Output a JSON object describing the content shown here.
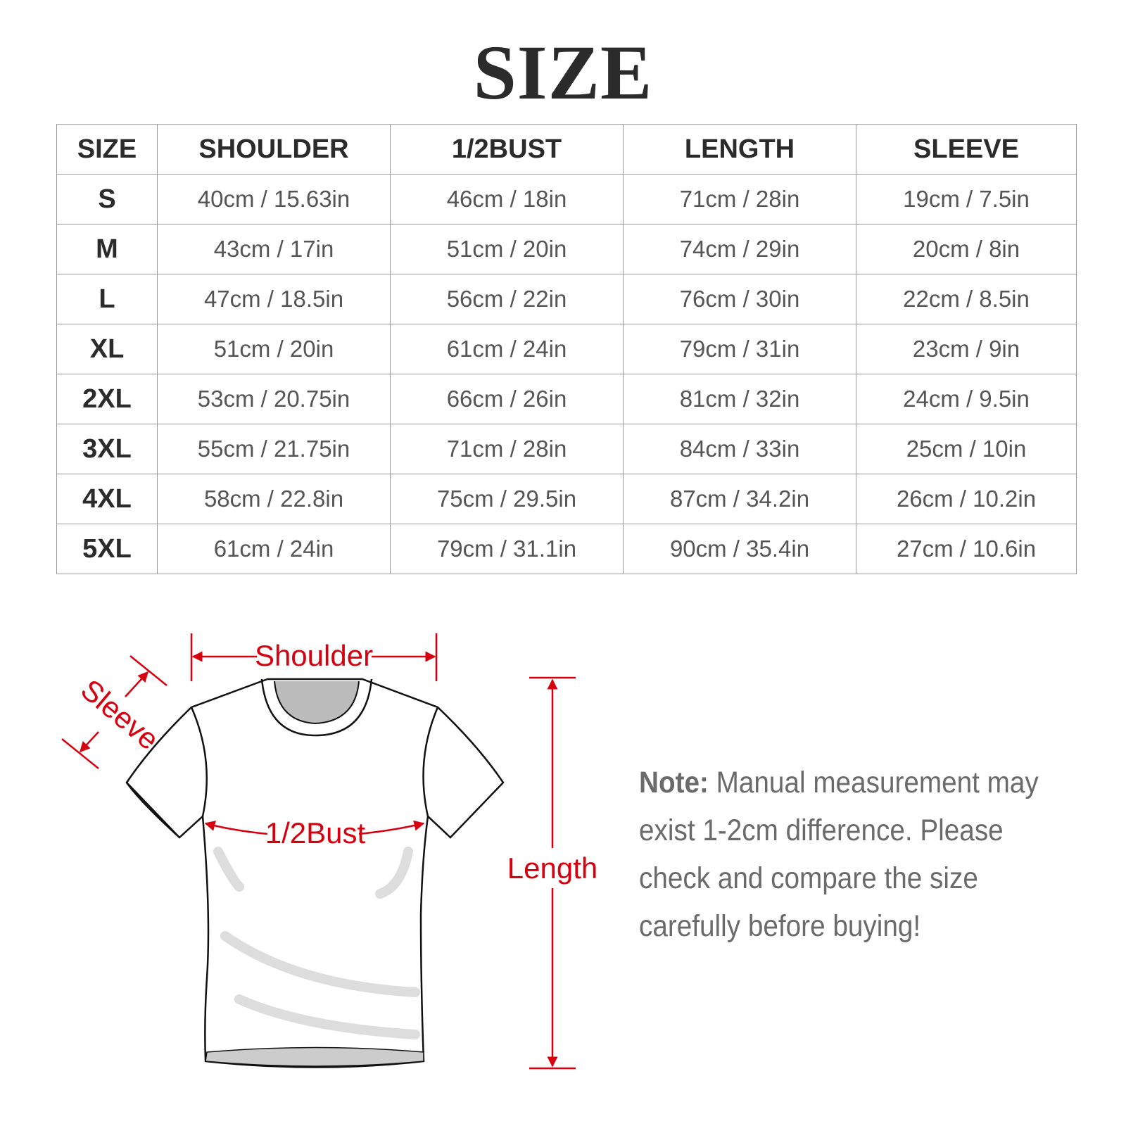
{
  "title": "SIZE",
  "table": {
    "headers": [
      "SIZE",
      "SHOULDER",
      "1/2BUST",
      "LENGTH",
      "SLEEVE"
    ],
    "rows": [
      [
        "S",
        "40cm / 15.63in",
        "46cm / 18in",
        "71cm / 28in",
        "19cm / 7.5in"
      ],
      [
        "M",
        "43cm / 17in",
        "51cm / 20in",
        "74cm / 29in",
        "20cm / 8in"
      ],
      [
        "L",
        "47cm / 18.5in",
        "56cm / 22in",
        "76cm / 30in",
        "22cm / 8.5in"
      ],
      [
        "XL",
        "51cm / 20in",
        "61cm / 24in",
        "79cm / 31in",
        "23cm / 9in"
      ],
      [
        "2XL",
        "53cm / 20.75in",
        "66cm / 26in",
        "81cm / 32in",
        "24cm / 9.5in"
      ],
      [
        "3XL",
        "55cm / 21.75in",
        "71cm / 28in",
        "84cm / 33in",
        "25cm / 10in"
      ],
      [
        "4XL",
        "58cm / 22.8in",
        "75cm / 29.5in",
        "87cm / 34.2in",
        "26cm / 10.2in"
      ],
      [
        "5XL",
        "61cm / 24in",
        "79cm / 31.1in",
        "90cm / 35.4in",
        "27cm / 10.6in"
      ]
    ]
  },
  "diagram": {
    "shoulder_label": "Shoulder",
    "sleeve_label": "Sleeve",
    "bust_label": "1/2Bust",
    "length_label": "Length",
    "accent_color": "#d7000f"
  },
  "note": {
    "label": "Note:",
    "text": " Manual measurement may exist 1-2cm difference. Please check and compare the size carefully before buying!"
  }
}
